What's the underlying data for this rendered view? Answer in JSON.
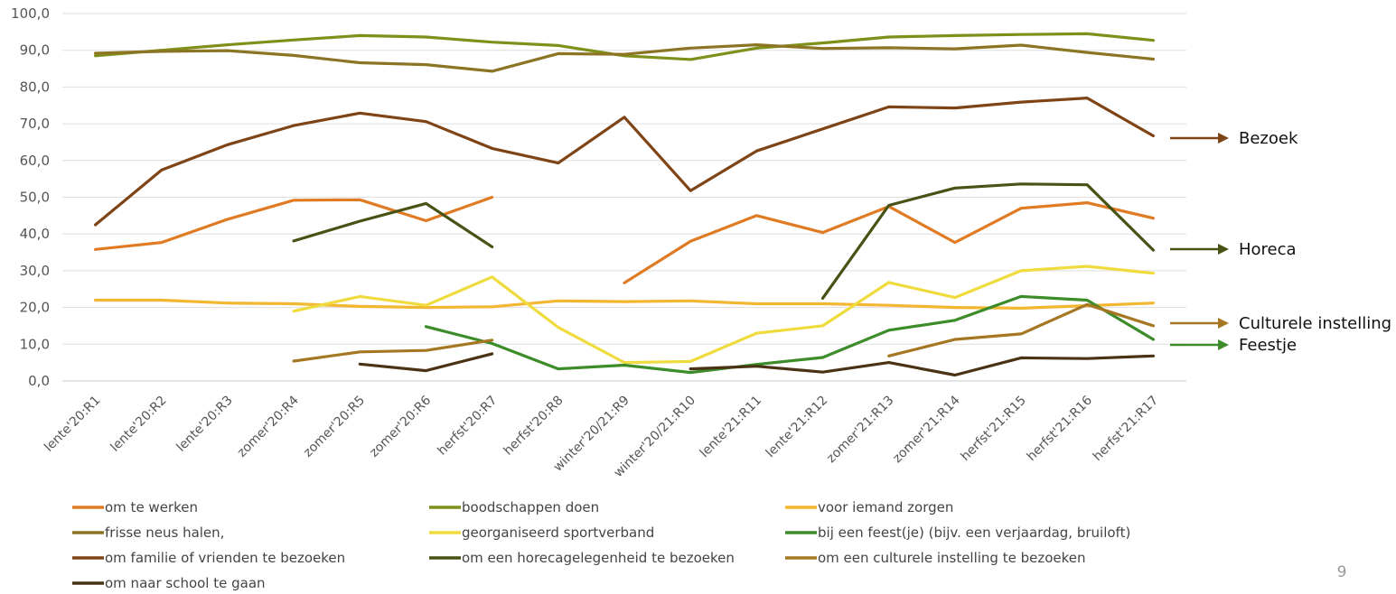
{
  "chart_data": {
    "type": "line",
    "title": "",
    "xlabel": "",
    "ylabel": "",
    "ylim": [
      0,
      100
    ],
    "yticks": [
      "0,0",
      "10,0",
      "20,0",
      "30,0",
      "40,0",
      "50,0",
      "60,0",
      "70,0",
      "80,0",
      "90,0",
      "100,0"
    ],
    "grid": true,
    "legend_position": "bottom",
    "categories": [
      "lente'20:R1",
      "lente'20:R2",
      "lente'20:R3",
      "zomer'20:R4",
      "zomer'20:R5",
      "zomer'20:R6",
      "herfst'20:R7",
      "herfst'20:R8",
      "winter'20/21:R9",
      "winter'20/21:R10",
      "lente'21:R11",
      "lente'21:R12",
      "zomer'21:R13",
      "zomer'21:R14",
      "herfst'21:R15",
      "herfst'21:R16",
      "herfst'21:R17"
    ],
    "series": [
      {
        "name": "om te werken",
        "color": "#E07B24",
        "values": [
          35.8,
          37.7,
          44.0,
          49.2,
          49.3,
          43.6,
          50.0,
          null,
          26.7,
          38.0,
          45.0,
          40.4,
          47.5,
          37.7,
          47.0,
          48.5,
          44.3
        ]
      },
      {
        "name": "boodschappen doen",
        "color": "#7E8F1A",
        "values": [
          88.5,
          90.0,
          91.5,
          92.8,
          94.0,
          93.6,
          92.2,
          91.3,
          88.5,
          87.5,
          90.6,
          92.0,
          93.6,
          94.0,
          94.3,
          94.5,
          92.7
        ]
      },
      {
        "name": "voor iemand zorgen",
        "color": "#F2B631",
        "values": [
          22.0,
          22.0,
          21.2,
          21.0,
          20.3,
          20.0,
          20.2,
          21.8,
          21.6,
          21.8,
          21.0,
          21.0,
          20.6,
          20.0,
          19.8,
          20.5,
          21.2
        ]
      },
      {
        "name": "frisse neus halen,",
        "color": "#8B7424",
        "values": [
          89.2,
          89.7,
          89.9,
          88.6,
          86.6,
          86.1,
          84.3,
          89.1,
          88.9,
          90.6,
          91.5,
          90.5,
          90.7,
          90.4,
          91.4,
          89.4,
          87.6
        ]
      },
      {
        "name": "georganiseerd sportverband",
        "color": "#EFDB3D",
        "values": [
          null,
          null,
          null,
          19.0,
          23.0,
          20.6,
          28.3,
          14.6,
          5.0,
          5.3,
          13.0,
          15.0,
          26.8,
          22.7,
          30.0,
          31.2,
          29.3
        ]
      },
      {
        "name": "bij een feest(je) (bijv. een verjaardag, bruiloft)",
        "color": "#3C8C2A",
        "values": [
          null,
          null,
          null,
          null,
          null,
          14.8,
          10.2,
          3.3,
          4.3,
          2.3,
          4.5,
          6.4,
          13.8,
          16.5,
          23.0,
          22.0,
          11.3
        ]
      },
      {
        "name": "om familie of vrienden te bezoeken",
        "color": "#7F4416",
        "values": [
          42.5,
          57.4,
          64.3,
          69.5,
          72.9,
          70.6,
          63.3,
          59.3,
          71.8,
          51.8,
          62.6,
          68.6,
          74.6,
          74.3,
          75.9,
          77.0,
          66.7
        ]
      },
      {
        "name": "om een horecagelegenheid te bezoeken",
        "color": "#475215",
        "values": [
          null,
          null,
          null,
          38.1,
          43.5,
          48.3,
          36.5,
          null,
          null,
          null,
          null,
          22.5,
          47.8,
          52.5,
          53.6,
          53.4,
          35.6
        ]
      },
      {
        "name": "om een culturele instelling te bezoeken",
        "color": "#A57722",
        "values": [
          null,
          null,
          null,
          5.4,
          7.9,
          8.3,
          11.1,
          null,
          null,
          null,
          null,
          null,
          6.8,
          11.3,
          12.8,
          20.8,
          15.0
        ]
      },
      {
        "name": "om naar school te gaan",
        "color": "#4A3215",
        "values": [
          null,
          null,
          null,
          null,
          4.6,
          2.8,
          7.4,
          null,
          null,
          3.3,
          4.0,
          2.4,
          5.0,
          1.6,
          6.3,
          6.1,
          6.8
        ]
      }
    ]
  },
  "annotations": [
    {
      "text": "Bezoek",
      "color": "#7F4416",
      "series_index": 6
    },
    {
      "text": "Horeca",
      "color": "#475215",
      "series_index": 7
    },
    {
      "text": "Culturele instelling",
      "color": "#A57722",
      "series_index": 8
    },
    {
      "text": "Feestje",
      "color": "#3C8C2A",
      "series_index": 5
    }
  ],
  "page_number": "9"
}
